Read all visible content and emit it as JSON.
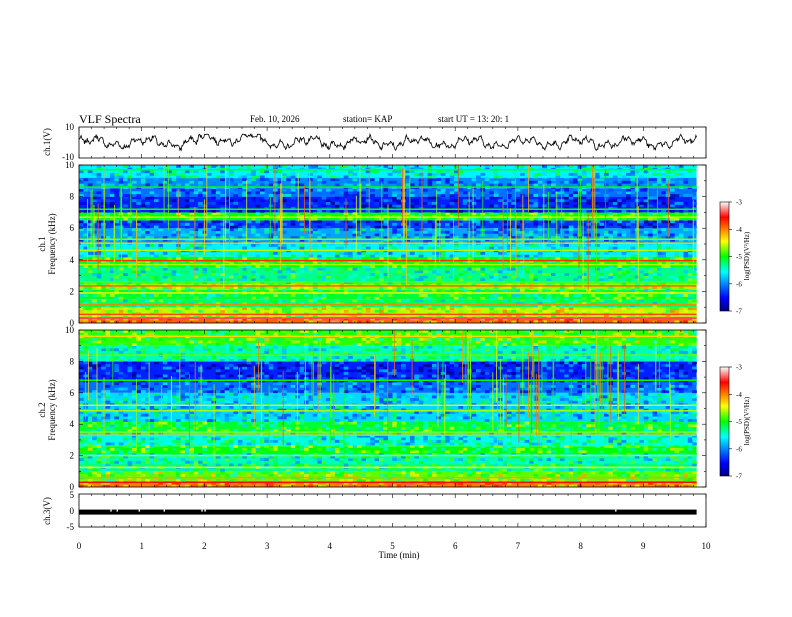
{
  "header": {
    "title": "VLF Spectra",
    "date": "Feb. 10, 2026",
    "station": "station= KAP",
    "start": "start  UT  =   13: 20: 1"
  },
  "chart_data": [
    {
      "type": "line",
      "name": "ch1-waveform",
      "ylabel": "ch.1(V)",
      "ylim": [
        -10,
        10
      ],
      "y_ticks": [
        "10",
        "-10"
      ],
      "xlim": [
        0,
        10
      ]
    },
    {
      "type": "heatmap",
      "name": "ch1-spectrogram",
      "ylabel_top": "ch.1",
      "ylabel": "Frequency  (kHz)",
      "ylim": [
        0,
        10
      ],
      "y_ticks": [
        "0",
        "2",
        "4",
        "6",
        "8",
        "10"
      ],
      "xlim": [
        0,
        10
      ],
      "data_end_min": 9.85,
      "colorbar": {
        "label": "log(PSD)(V²/Hz)",
        "ticks": [
          "-3",
          "-4",
          "-5",
          "-6",
          "-7"
        ],
        "range": [
          -7,
          -3
        ]
      },
      "bands": [
        {
          "f0": 0.0,
          "f1": 0.4,
          "v": -3.9
        },
        {
          "f0": 0.4,
          "f1": 1.0,
          "v": -4.6
        },
        {
          "f0": 1.0,
          "f1": 1.5,
          "v": -5.2
        },
        {
          "f0": 1.5,
          "f1": 2.1,
          "v": -5.1
        },
        {
          "f0": 2.1,
          "f1": 2.5,
          "v": -4.7
        },
        {
          "f0": 2.5,
          "f1": 3.5,
          "v": -5.3
        },
        {
          "f0": 3.5,
          "f1": 4.2,
          "v": -5.0
        },
        {
          "f0": 4.2,
          "f1": 5.0,
          "v": -5.6
        },
        {
          "f0": 5.0,
          "f1": 6.0,
          "v": -5.9
        },
        {
          "f0": 6.0,
          "f1": 6.5,
          "v": -6.3
        },
        {
          "f0": 6.5,
          "f1": 7.0,
          "v": -5.0
        },
        {
          "f0": 7.0,
          "f1": 8.0,
          "v": -6.4
        },
        {
          "f0": 8.0,
          "f1": 8.5,
          "v": -6.1
        },
        {
          "f0": 8.5,
          "f1": 9.2,
          "v": -6.0
        },
        {
          "f0": 9.2,
          "f1": 10.0,
          "v": -5.6
        }
      ],
      "lines": [
        {
          "f": 0.3,
          "v": -3.4
        },
        {
          "f": 0.55,
          "v": -3.8
        },
        {
          "f": 1.15,
          "v": -4.0
        },
        {
          "f": 1.9,
          "v": -4.4
        },
        {
          "f": 2.35,
          "v": -3.9
        },
        {
          "f": 2.6,
          "v": -4.8
        },
        {
          "f": 3.7,
          "v": -4.6
        },
        {
          "f": 3.95,
          "v": -3.7
        },
        {
          "f": 4.6,
          "v": -4.6
        },
        {
          "f": 5.05,
          "v": -4.3
        },
        {
          "f": 5.3,
          "v": -4.7
        },
        {
          "f": 6.7,
          "v": -4.5
        },
        {
          "f": 7.2,
          "v": -5.0
        },
        {
          "f": 8.6,
          "v": -5.0
        },
        {
          "f": 9.7,
          "v": -5.1
        }
      ]
    },
    {
      "type": "heatmap",
      "name": "ch2-spectrogram",
      "ylabel_top": "ch.2",
      "ylabel": "Frequency  (kHz)",
      "ylim": [
        0,
        10
      ],
      "y_ticks": [
        "0",
        "2",
        "4",
        "6",
        "8",
        "10"
      ],
      "xlim": [
        0,
        10
      ],
      "data_end_min": 9.85,
      "colorbar": {
        "label": "log(PSD)(V²/Hz)",
        "ticks": [
          "-3",
          "-4",
          "-5",
          "-6",
          "-7"
        ],
        "range": [
          -7,
          -3
        ]
      },
      "bands": [
        {
          "f0": 0.0,
          "f1": 0.4,
          "v": -4.0
        },
        {
          "f0": 0.4,
          "f1": 1.0,
          "v": -4.8
        },
        {
          "f0": 1.0,
          "f1": 1.5,
          "v": -5.3
        },
        {
          "f0": 1.5,
          "f1": 2.1,
          "v": -5.4
        },
        {
          "f0": 2.1,
          "f1": 2.6,
          "v": -5.0
        },
        {
          "f0": 2.6,
          "f1": 3.5,
          "v": -5.5
        },
        {
          "f0": 3.5,
          "f1": 4.2,
          "v": -5.1
        },
        {
          "f0": 4.2,
          "f1": 5.0,
          "v": -5.7
        },
        {
          "f0": 5.0,
          "f1": 6.0,
          "v": -5.7
        },
        {
          "f0": 6.0,
          "f1": 6.7,
          "v": -6.1
        },
        {
          "f0": 6.7,
          "f1": 8.0,
          "v": -6.4
        },
        {
          "f0": 8.0,
          "f1": 9.0,
          "v": -5.4
        },
        {
          "f0": 9.0,
          "f1": 10.0,
          "v": -4.9
        }
      ],
      "lines": [
        {
          "f": 0.3,
          "v": -3.6
        },
        {
          "f": 0.6,
          "v": -4.1
        },
        {
          "f": 1.25,
          "v": -4.5
        },
        {
          "f": 2.0,
          "v": -4.6
        },
        {
          "f": 3.3,
          "v": -4.2
        },
        {
          "f": 3.5,
          "v": -4.7
        },
        {
          "f": 4.85,
          "v": -4.6
        },
        {
          "f": 5.2,
          "v": -4.5
        },
        {
          "f": 6.8,
          "v": -5.0
        },
        {
          "f": 8.4,
          "v": -4.8
        },
        {
          "f": 9.6,
          "v": -4.3
        }
      ]
    },
    {
      "type": "line",
      "name": "ch3-level",
      "ylabel": "ch.3(V)",
      "ylim": [
        -5,
        5
      ],
      "y_ticks": [
        "5",
        "0",
        "-5"
      ],
      "level": -0.5,
      "xlim": [
        0,
        10
      ],
      "x_ticks": [
        "0",
        "1",
        "2",
        "3",
        "4",
        "5",
        "6",
        "7",
        "8",
        "9",
        "10"
      ],
      "xlabel": "Time  (min)"
    }
  ]
}
